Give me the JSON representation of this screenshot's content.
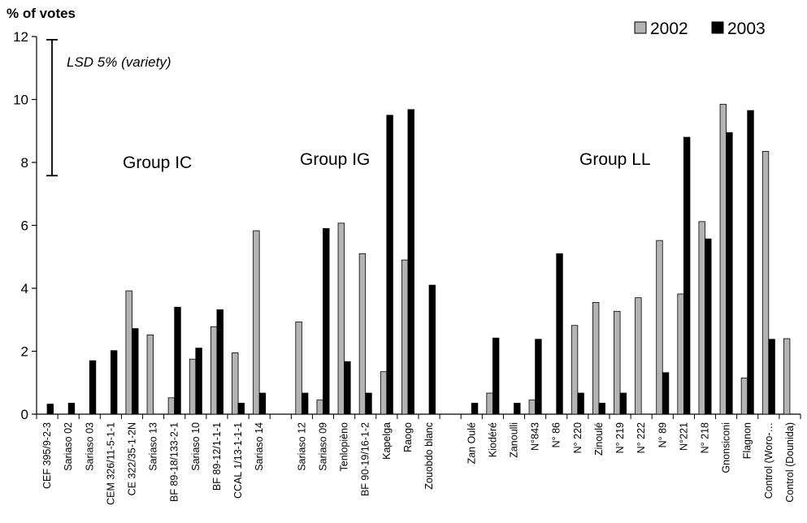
{
  "chart_data": {
    "type": "bar",
    "ylabel": "% of votes",
    "ylim": [
      0,
      12
    ],
    "yticks": [
      0,
      2,
      4,
      6,
      8,
      10,
      12
    ],
    "grid": false,
    "legend_position": "top-right",
    "series": [
      {
        "name": "2002",
        "color": "#b3b3b3"
      },
      {
        "name": "2003",
        "color": "#000000"
      }
    ],
    "categories": [
      {
        "label": "CEF 395/9-2-3",
        "v2002": 0,
        "v2003": 0.32
      },
      {
        "label": "Sariaso 02",
        "v2002": 0,
        "v2003": 0.35
      },
      {
        "label": "Sariaso 03",
        "v2002": 0,
        "v2003": 1.7
      },
      {
        "label": "CEM 326/11-5-1-1",
        "v2002": 0,
        "v2003": 2.02
      },
      {
        "label": "CE 322/35-1-2N",
        "v2002": 3.92,
        "v2003": 2.72
      },
      {
        "label": "Sariaso 13",
        "v2002": 2.52,
        "v2003": 0
      },
      {
        "label": "BF 89-18/133-2-1",
        "v2002": 0.52,
        "v2003": 3.4
      },
      {
        "label": "Sariaso 10",
        "v2002": 1.75,
        "v2003": 2.1
      },
      {
        "label": "BF 89-12/1-1-1",
        "v2002": 2.78,
        "v2003": 3.32
      },
      {
        "label": "CCAL 1/13-1-1-1",
        "v2002": 1.95,
        "v2003": 0.35
      },
      {
        "label": "Sariaso 14",
        "v2002": 5.83,
        "v2003": 0.67
      },
      {
        "label": "",
        "v2002": 0,
        "v2003": 0
      },
      {
        "label": "Sariaso 12",
        "v2002": 2.93,
        "v2003": 0.67
      },
      {
        "label": "Sariaso 09",
        "v2002": 0.45,
        "v2003": 5.9
      },
      {
        "label": "Tenlopièno",
        "v2002": 6.07,
        "v2003": 1.67
      },
      {
        "label": "BF 90-19/16-1-2",
        "v2002": 5.1,
        "v2003": 0.67
      },
      {
        "label": "Kapelga",
        "v2002": 1.35,
        "v2003": 9.5
      },
      {
        "label": "Raogo",
        "v2002": 4.9,
        "v2003": 9.68
      },
      {
        "label": "Zouobdo blanc",
        "v2002": 0,
        "v2003": 4.1
      },
      {
        "label": "",
        "v2002": 0,
        "v2003": 0
      },
      {
        "label": "Zan Oulé",
        "v2002": 0,
        "v2003": 0.35
      },
      {
        "label": "Kiodéré",
        "v2002": 0.67,
        "v2003": 2.42
      },
      {
        "label": "Zanoulli",
        "v2002": 0,
        "v2003": 0.35
      },
      {
        "label": "N°843",
        "v2002": 0.45,
        "v2003": 2.38
      },
      {
        "label": "N° 86",
        "v2002": 0,
        "v2003": 5.1
      },
      {
        "label": "N° 220",
        "v2002": 2.82,
        "v2003": 0.67
      },
      {
        "label": "Zinoulé",
        "v2002": 3.55,
        "v2003": 0.35
      },
      {
        "label": "N° 219",
        "v2002": 3.27,
        "v2003": 0.67
      },
      {
        "label": "N° 222",
        "v2002": 3.7,
        "v2003": 0
      },
      {
        "label": "N° 89",
        "v2002": 5.52,
        "v2003": 1.32
      },
      {
        "label": "N°221",
        "v2002": 3.82,
        "v2003": 8.8
      },
      {
        "label": "N° 218",
        "v2002": 6.12,
        "v2003": 5.57
      },
      {
        "label": "Gnonsiconi",
        "v2002": 9.85,
        "v2003": 8.95
      },
      {
        "label": "Flagnon",
        "v2002": 1.15,
        "v2003": 9.65
      },
      {
        "label": "Control (Woro-…",
        "v2002": 8.35,
        "v2003": 2.38
      },
      {
        "label": "Control (Dounida)",
        "v2002": 2.4,
        "v2003": 0
      }
    ],
    "groups": [
      {
        "label": "Group IC"
      },
      {
        "label": "Group IG"
      },
      {
        "label": "Group LL"
      }
    ],
    "annotation": {
      "label": "LSD 5% (variety)",
      "from": 7.58,
      "to": 11.9
    }
  }
}
